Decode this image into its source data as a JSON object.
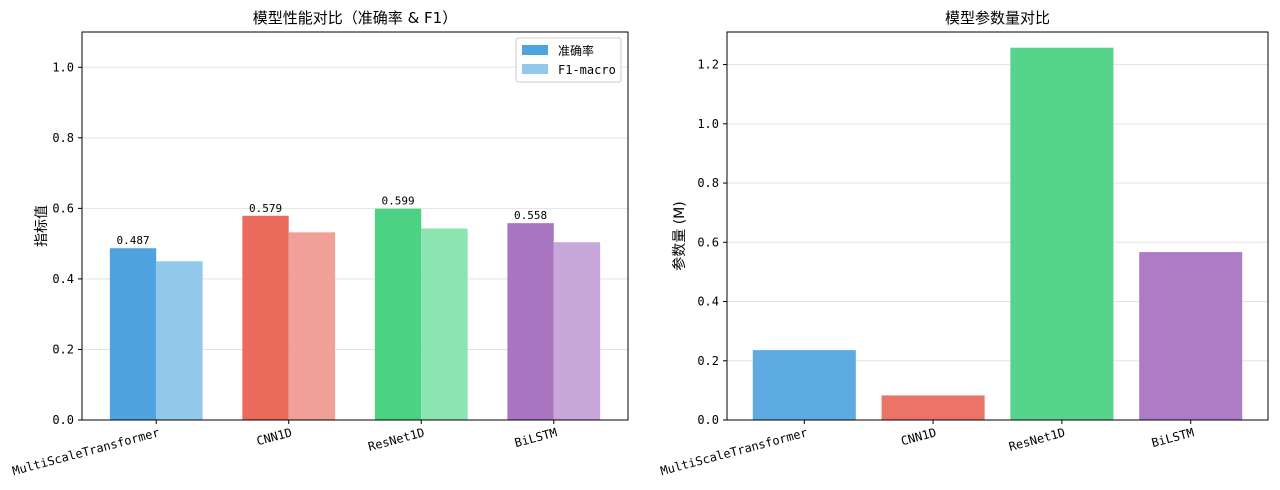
{
  "chart_data": [
    {
      "type": "bar",
      "title": "模型性能对比（准确率 & F1）",
      "xlabel": "",
      "ylabel": "指标值",
      "ylim": [
        0,
        1.1
      ],
      "yticks": [
        0.0,
        0.2,
        0.4,
        0.6,
        0.8,
        1.0
      ],
      "ytick_labels": [
        "0.0",
        "0.2",
        "0.4",
        "0.6",
        "0.8",
        "1.0"
      ],
      "grid": "y",
      "legend": "top-right",
      "categories": [
        "MultiScaleTransformer",
        "CNN1D",
        "ResNet1D",
        "BiLSTM"
      ],
      "series": [
        {
          "name": "准确率",
          "values": [
            0.487,
            0.579,
            0.599,
            0.558
          ],
          "data_labels": [
            "0.487",
            "0.579",
            "0.599",
            "0.558"
          ],
          "colors": [
            "#4fa3df",
            "#ea6b5c",
            "#4bd283",
            "#a974c0"
          ],
          "legend_color": "#4fa3df"
        },
        {
          "name": "F1-macro",
          "values": [
            0.45,
            0.532,
            0.543,
            0.504
          ],
          "colors": [
            "#92c8ec",
            "#f0a096",
            "#8ce4b0",
            "#c9a6da"
          ],
          "legend_color": "#92c8ec"
        }
      ]
    },
    {
      "type": "bar",
      "title": "模型参数量对比",
      "xlabel": "",
      "ylabel": "参数量 (M)",
      "ylim": [
        0,
        1.31
      ],
      "yticks": [
        0.0,
        0.2,
        0.4,
        0.6,
        0.8,
        1.0,
        1.2
      ],
      "ytick_labels": [
        "0.0",
        "0.2",
        "0.4",
        "0.6",
        "0.8",
        "1.0",
        "1.2"
      ],
      "grid": "y",
      "categories": [
        "MultiScaleTransformer",
        "CNN1D",
        "ResNet1D",
        "BiLSTM"
      ],
      "values": [
        0.236,
        0.083,
        1.257,
        0.567
      ],
      "colors": [
        "#5dabe2",
        "#ec7466",
        "#57d48c",
        "#ae7cc4"
      ]
    }
  ]
}
